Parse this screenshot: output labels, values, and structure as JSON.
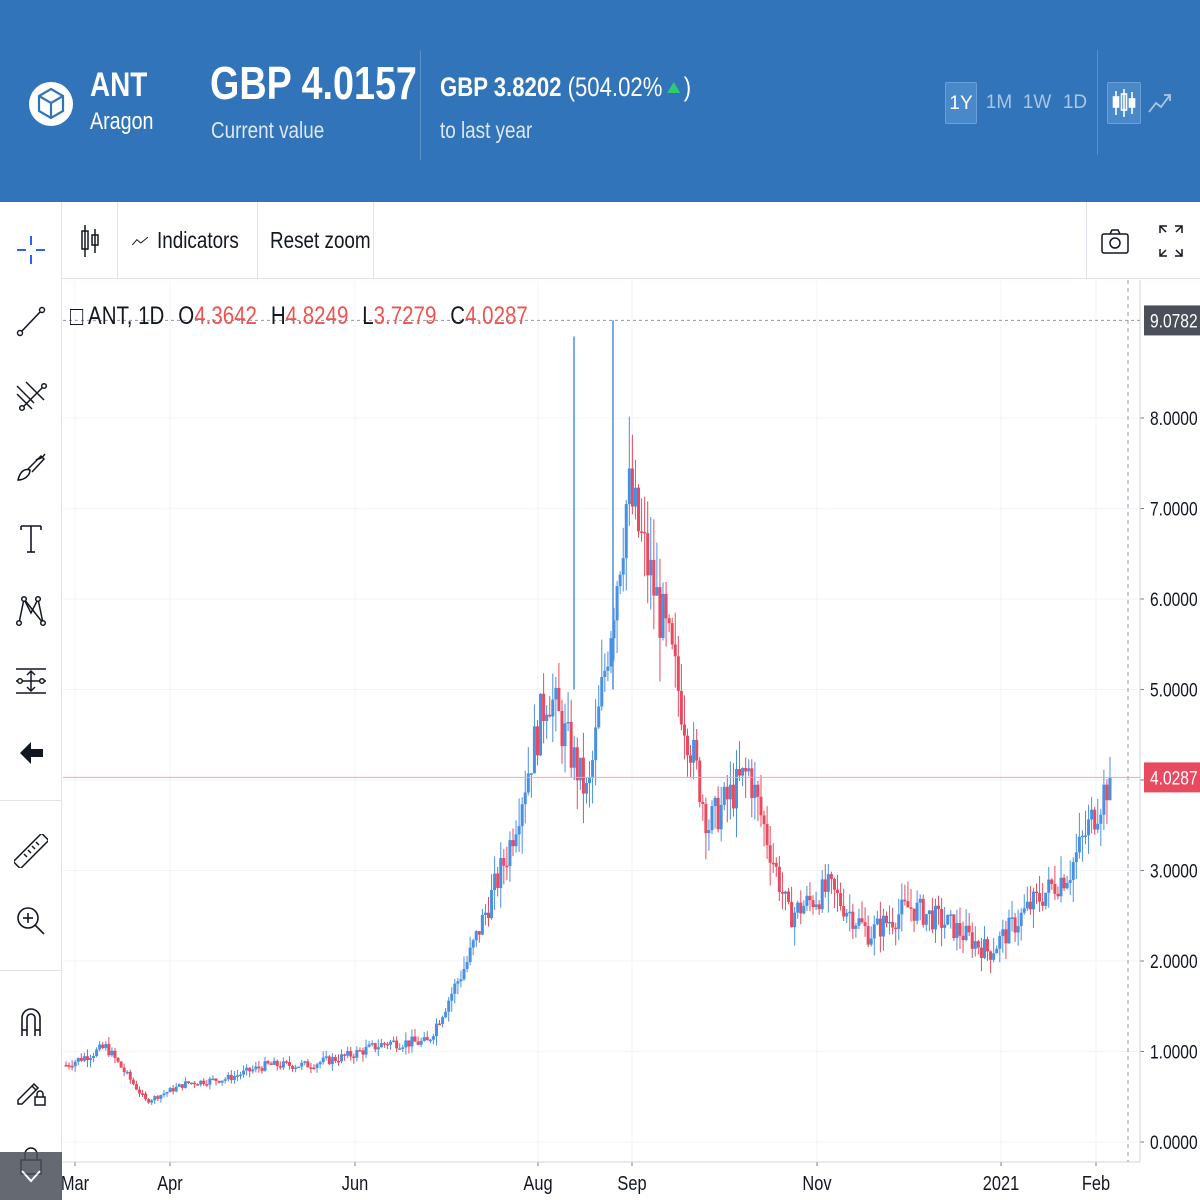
{
  "header": {
    "symbol": "ANT",
    "name": "Aragon",
    "price": "GBP 4.0157",
    "price_caption": "Current value",
    "change_abs": "GBP 3.8202",
    "change_pct": "(504.02%",
    "change_close": ")",
    "change_caption": "to last year",
    "periods": [
      "1Y",
      "1M",
      "1W",
      "1D"
    ],
    "active_period": "1Y",
    "chart_types": [
      "candlestick-icon",
      "line-chart-icon"
    ],
    "colors": {
      "background": "#3274b9",
      "up_arrow": "#2ecc71"
    }
  },
  "left_toolbar": {
    "tools": [
      "crosshair-icon",
      "trend-line-icon",
      "fib-retracement-icon",
      "brush-icon",
      "text-icon",
      "pattern-icon",
      "measure-icon",
      "back-arrow-icon",
      "ruler-icon",
      "zoom-in-icon",
      "magnet-icon",
      "lock-drawing-icon",
      "lock-icon"
    ]
  },
  "chart_toolbar": {
    "indicators_label": "Indicators",
    "reset_zoom_label": "Reset zoom"
  },
  "legend": {
    "symbol": "ANT, 1D",
    "open_key": "O",
    "open": "4.3642",
    "high_key": "H",
    "high": "4.8249",
    "low_key": "L",
    "low": "3.7279",
    "close_key": "C",
    "close": "4.0287"
  },
  "chart_data": {
    "type": "candlestick",
    "x_tick_labels": [
      "Mar",
      "Apr",
      "Jun",
      "Aug",
      "Sep",
      "Nov",
      "2021",
      "Feb"
    ],
    "y_tick_labels": [
      "0.0000",
      "1.0000",
      "2.0000",
      "3.0000",
      "4.0000",
      "5.0000",
      "6.0000",
      "7.0000",
      "8.0000"
    ],
    "ylim": [
      0,
      9.5
    ],
    "price_labels": {
      "high_marker": "9.0782",
      "last_price": "4.0287"
    },
    "colors": {
      "up": "#4a90e2",
      "down": "#e84a5f",
      "last_price_line": "#f1a5ad"
    },
    "approx_close_path": [
      {
        "x": "Mar",
        "y": 0.85
      },
      {
        "x": "Mar",
        "y": 1.05
      },
      {
        "x": "Mar",
        "y": 0.45
      },
      {
        "x": "Apr",
        "y": 0.65
      },
      {
        "x": "Apr",
        "y": 0.7
      },
      {
        "x": "May",
        "y": 0.85
      },
      {
        "x": "Jun",
        "y": 0.85
      },
      {
        "x": "Jun",
        "y": 0.95
      },
      {
        "x": "Jul",
        "y": 1.1
      },
      {
        "x": "Jul",
        "y": 1.1
      },
      {
        "x": "Aug",
        "y": 2.0
      },
      {
        "x": "Aug",
        "y": 3.2
      },
      {
        "x": "Aug",
        "y": 5.0
      },
      {
        "x": "Aug",
        "y": 3.8
      },
      {
        "x": "Sep",
        "y": 7.2
      },
      {
        "x": "Sep",
        "y": 5.5
      },
      {
        "x": "Sep",
        "y": 3.5
      },
      {
        "x": "Sep",
        "y": 4.1
      },
      {
        "x": "Oct",
        "y": 2.5
      },
      {
        "x": "Oct",
        "y": 2.8
      },
      {
        "x": "Nov",
        "y": 2.3
      },
      {
        "x": "Nov",
        "y": 2.6
      },
      {
        "x": "Dec",
        "y": 2.4
      },
      {
        "x": "2021",
        "y": 2.1
      },
      {
        "x": "2021",
        "y": 2.6
      },
      {
        "x": "Feb",
        "y": 3.0
      },
      {
        "x": "Feb",
        "y": 4.03
      }
    ]
  }
}
